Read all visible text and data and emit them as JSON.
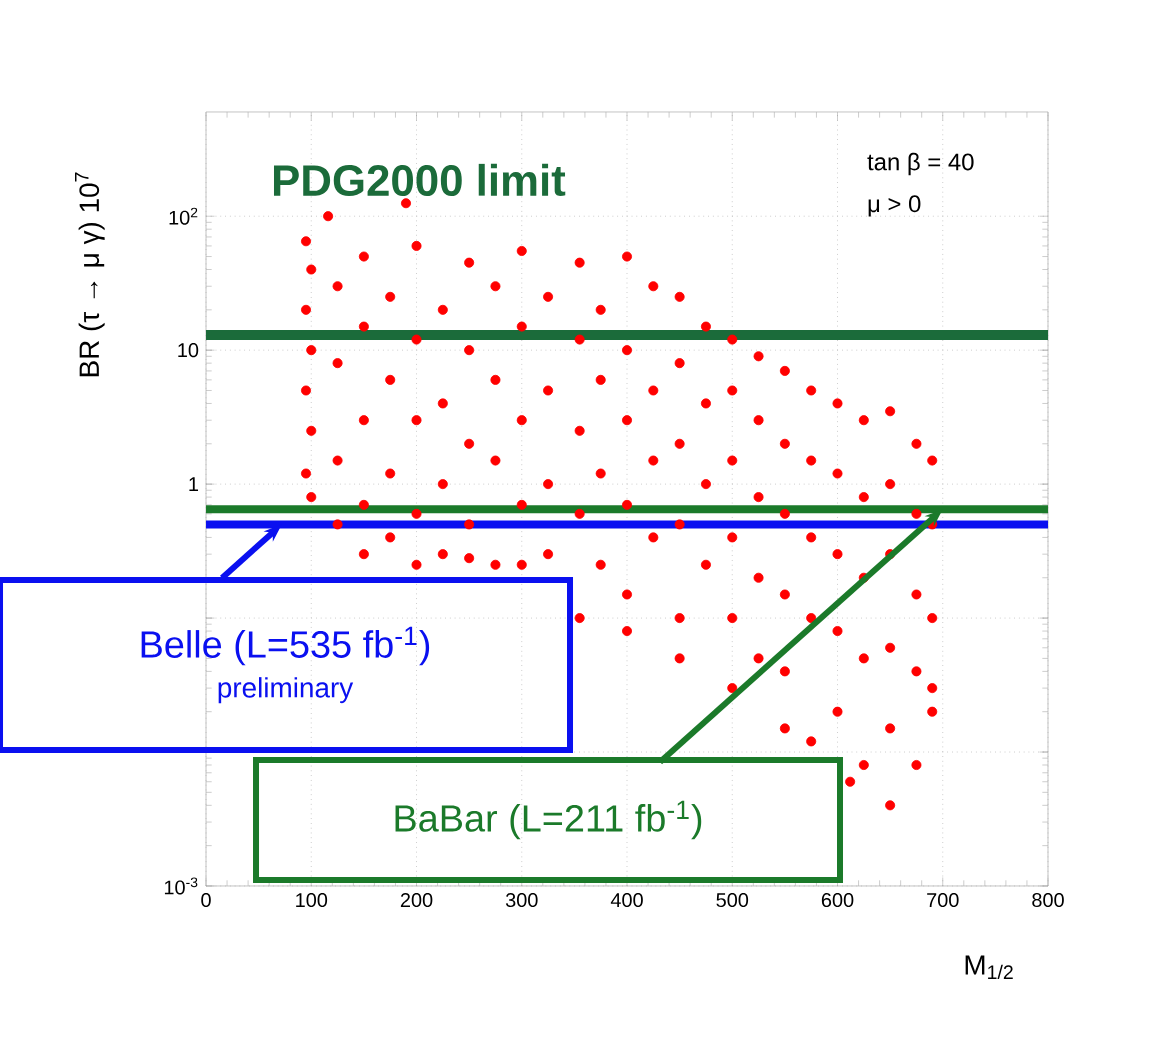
{
  "chart_data": {
    "type": "scatter",
    "xlabel": "M$_{1/2}$",
    "ylabel": "BR (τ → μ γ) 10$^{7}$",
    "color": "#ff0000",
    "log": "y",
    "grid": true,
    "xlim": [
      0,
      800
    ],
    "ylim": [
      0.001,
      600
    ],
    "xticks": [
      0,
      100,
      200,
      300,
      400,
      500,
      600,
      700,
      800
    ],
    "yticks": [
      {
        "value": 0.001,
        "label": "10$^{-3}$"
      },
      {
        "value": 0.01,
        "label": null
      },
      {
        "value": 0.1,
        "label": null
      },
      {
        "value": 1,
        "label": "1"
      },
      {
        "value": 10,
        "label": "10"
      },
      {
        "value": 100,
        "label": "10$^{2}$"
      }
    ],
    "x": [
      95,
      95,
      95,
      95,
      100,
      100,
      100,
      100,
      116,
      125,
      125,
      125,
      125,
      150,
      150,
      150,
      150,
      150,
      175,
      175,
      175,
      175,
      190,
      200,
      200,
      200,
      200,
      200,
      225,
      225,
      225,
      225,
      250,
      250,
      250,
      250,
      250,
      275,
      275,
      275,
      275,
      300,
      300,
      300,
      300,
      300,
      325,
      325,
      325,
      325,
      355,
      355,
      355,
      355,
      355,
      375,
      375,
      375,
      375,
      400,
      400,
      400,
      400,
      400,
      400,
      425,
      425,
      425,
      425,
      450,
      450,
      450,
      450,
      450,
      450,
      475,
      475,
      475,
      475,
      500,
      500,
      500,
      500,
      500,
      500,
      525,
      525,
      525,
      525,
      525,
      550,
      550,
      550,
      550,
      550,
      550,
      575,
      575,
      575,
      575,
      575,
      600,
      600,
      600,
      600,
      600,
      612,
      625,
      625,
      625,
      625,
      625,
      650,
      650,
      650,
      650,
      650,
      650,
      675,
      675,
      675,
      675,
      675,
      690,
      690,
      690,
      690,
      690
    ],
    "values": [
      65,
      20,
      5,
      1.2,
      40,
      10,
      2.5,
      0.8,
      100,
      30,
      8,
      1.5,
      0.5,
      50,
      15,
      3,
      0.7,
      0.3,
      25,
      6,
      1.2,
      0.4,
      125,
      60,
      12,
      3,
      0.6,
      0.25,
      20,
      4,
      1,
      0.3,
      45,
      10,
      2,
      0.5,
      0.28,
      30,
      6,
      1.5,
      0.25,
      55,
      15,
      3,
      0.7,
      0.25,
      25,
      5,
      1,
      0.3,
      45,
      12,
      2.5,
      0.6,
      0.1,
      20,
      6,
      1.2,
      0.25,
      50,
      10,
      3,
      0.7,
      0.15,
      0.08,
      30,
      5,
      1.5,
      0.4,
      25,
      8,
      2,
      0.5,
      0.1,
      0.05,
      15,
      4,
      1,
      0.25,
      12,
      5,
      1.5,
      0.4,
      0.1,
      0.03,
      9,
      3,
      0.8,
      0.2,
      0.05,
      7,
      2,
      0.6,
      0.15,
      0.04,
      0.015,
      5,
      1.5,
      0.4,
      0.1,
      0.012,
      4,
      1.2,
      0.3,
      0.08,
      0.02,
      0.006,
      3,
      0.8,
      0.2,
      0.05,
      0.008,
      3.5,
      1,
      0.3,
      0.06,
      0.015,
      0.004,
      2,
      0.6,
      0.15,
      0.04,
      0.008,
      1.5,
      0.5,
      0.1,
      0.03,
      0.02
    ],
    "ref_lines": [
      {
        "axis": "y",
        "value": 13,
        "label": "PDG2000 limit",
        "color": "#1b6b3a"
      },
      {
        "axis": "y",
        "value": 0.65,
        "color": "#1b7a2a"
      },
      {
        "axis": "y",
        "value": 0.5,
        "color": "#0a10f0"
      }
    ],
    "annotations": [
      "tan β = 40",
      "μ > 0",
      {
        "text": "BaBar (L=211 fb$^{-1}$)",
        "x": 700,
        "y": 0.65
      },
      {
        "text": "Belle (L=535 fb$^{-1}$)",
        "x": 72,
        "y": 0.5
      },
      "preliminary"
    ]
  }
}
